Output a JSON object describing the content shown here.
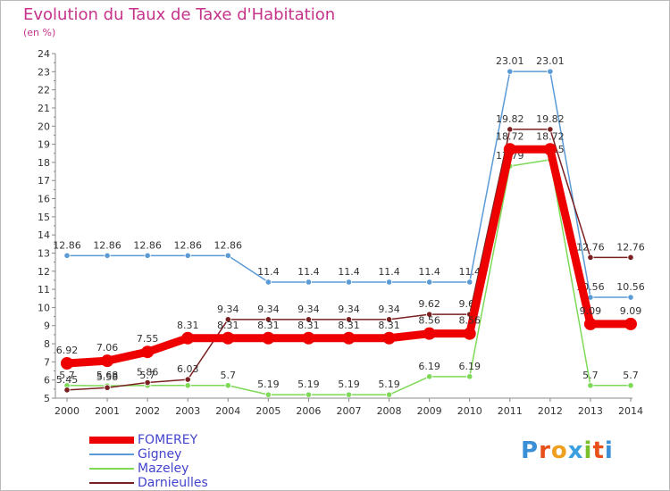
{
  "header": {
    "title": "Evolution du Taux de Taxe d'Habitation",
    "subtitle": "(en %)"
  },
  "logo": {
    "text": "Proxiti",
    "letters": [
      "P",
      "r",
      "o",
      "x",
      "i",
      "t",
      "i"
    ],
    "colors": [
      "#3a8fd6",
      "#e8501a",
      "#f0a020",
      "#3aa0e0",
      "#7bbf2a",
      "#e8501a",
      "#3a8fd6"
    ]
  },
  "chart_data": {
    "type": "line",
    "title": "Evolution du Taux de Taxe d'Habitation",
    "subtitle": "(en %)",
    "x": [
      "2000",
      "2001",
      "2002",
      "2003",
      "2004",
      "2005",
      "2006",
      "2007",
      "2008",
      "2009",
      "2010",
      "2011",
      "2012",
      "2013",
      "2014"
    ],
    "ylim": [
      5,
      24
    ],
    "yticks": [
      5,
      6,
      7,
      8,
      9,
      10,
      11,
      12,
      13,
      14,
      15,
      16,
      17,
      18,
      19,
      20,
      21,
      22,
      23,
      24
    ],
    "grid": false,
    "legend_position": "bottom-left",
    "series": [
      {
        "name": "Gigney",
        "color": "#5b9bd5",
        "values": [
          12.86,
          12.86,
          12.86,
          12.86,
          12.86,
          11.4,
          11.4,
          11.4,
          11.4,
          11.4,
          11.4,
          23.01,
          23.01,
          10.56,
          10.56
        ],
        "labels": [
          "12.86",
          "12.86",
          "12.86",
          "12.86",
          "12.86",
          "11.4",
          "11.4",
          "11.4",
          "11.4",
          "11.4",
          "11.4",
          "23.01",
          "23.01",
          "10.56",
          "10.56"
        ]
      },
      {
        "name": "Mazeley",
        "color": "#7ed957",
        "values": [
          5.7,
          5.68,
          5.7,
          5.7,
          5.7,
          5.19,
          5.19,
          5.19,
          5.19,
          6.19,
          6.19,
          17.79,
          18.15,
          5.7,
          5.7
        ],
        "labels": [
          "5.7",
          "5.68",
          "5.7",
          "",
          "5.7",
          "5.19",
          "5.19",
          "5.19",
          "5.19",
          "6.19",
          "6.19",
          "17.79",
          "18.15",
          "5.7",
          "5.7"
        ]
      },
      {
        "name": "Darnieulles",
        "color": "#7a2020",
        "values": [
          5.45,
          5.58,
          5.86,
          6.03,
          9.34,
          9.34,
          9.34,
          9.34,
          9.34,
          9.62,
          9.62,
          19.82,
          19.82,
          12.76,
          12.76
        ],
        "labels": [
          "5.45",
          "5.58",
          "5.86",
          "6.03",
          "9.34",
          "9.34",
          "9.34",
          "9.34",
          "9.34",
          "9.62",
          "9.62",
          "19.82",
          "19.82",
          "12.76",
          "12.76"
        ]
      },
      {
        "name": "FOMEREY",
        "color": "#ee0000",
        "values": [
          6.92,
          7.06,
          7.55,
          8.31,
          8.31,
          8.31,
          8.31,
          8.31,
          8.31,
          8.56,
          8.56,
          18.72,
          18.72,
          9.09,
          9.09
        ],
        "labels": [
          "6.92",
          "7.06",
          "7.55",
          "8.31",
          "8.31",
          "8.31",
          "8.31",
          "8.31",
          "8.31",
          "8.56",
          "8.56",
          "18.72",
          "18.72",
          "9.09",
          "9.09"
        ]
      }
    ]
  },
  "legend": {
    "items": [
      {
        "label": "FOMEREY",
        "color": "#ee0000"
      },
      {
        "label": "Gigney",
        "color": "#5b9bd5"
      },
      {
        "label": "Mazeley",
        "color": "#7ed957"
      },
      {
        "label": "Darnieulles",
        "color": "#7a2020"
      }
    ]
  }
}
